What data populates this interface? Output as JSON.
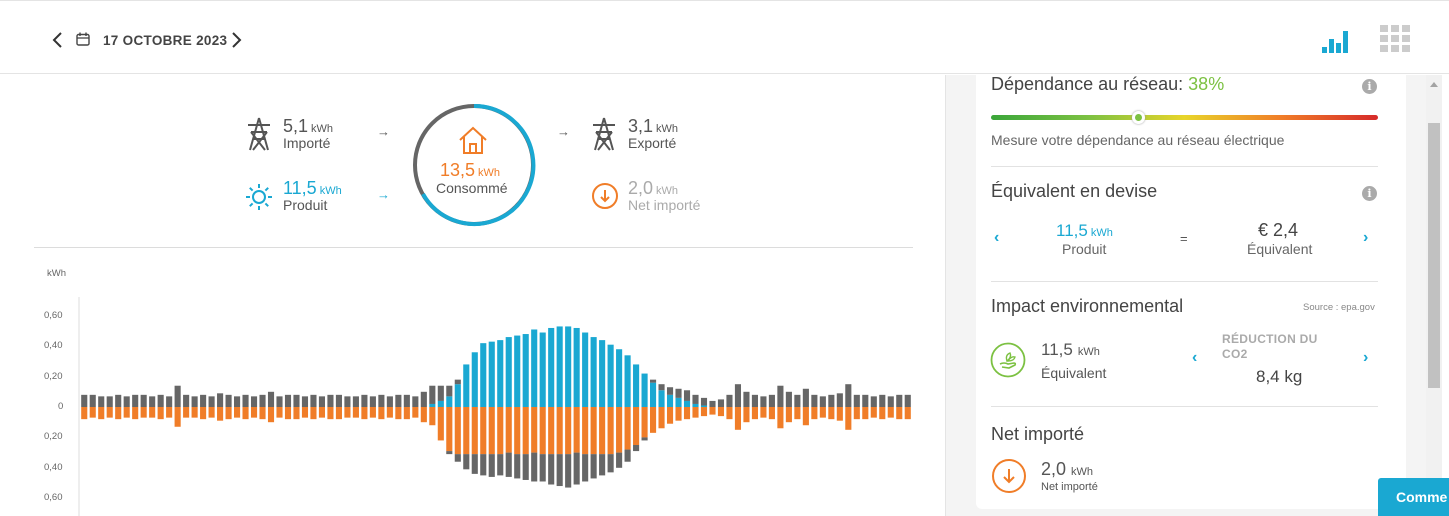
{
  "header": {
    "date": "17 OCTOBRE 2023",
    "prev_icon": "chevron-left-icon",
    "next_icon": "chevron-right-icon",
    "calendar_icon": "calendar-icon",
    "view_chart_icon": "bar-chart-icon",
    "view_grid_icon": "grid-icon"
  },
  "energy_flow": {
    "imported": {
      "value": "5,1",
      "unit": "kWh",
      "label": "Importé"
    },
    "produced": {
      "value": "11,5",
      "unit": "kWh",
      "label": "Produit"
    },
    "consumed": {
      "value": "13,5",
      "unit": "kWh",
      "label": "Consommé"
    },
    "exported": {
      "value": "3,1",
      "unit": "kWh",
      "label": "Exporté"
    },
    "net_imported": {
      "value": "2,0",
      "unit": "kWh",
      "label": "Net importé"
    },
    "arrow": "→"
  },
  "chart_data": {
    "type": "bar",
    "ylabel": "kWh",
    "yticks": [
      "0,60",
      "0,40",
      "0,20",
      "0",
      "0,20",
      "0,40",
      "0,60"
    ],
    "ylim": [
      -0.6,
      0.6
    ],
    "series": [
      {
        "color": "#1aa8d2",
        "values": [
          0,
          0,
          0,
          0,
          0,
          0,
          0,
          0,
          0,
          0,
          0,
          0,
          0,
          0,
          0,
          0,
          0,
          0,
          0,
          0,
          0,
          0,
          0,
          0,
          0,
          0,
          0,
          0,
          0,
          0,
          0,
          0,
          0,
          0,
          0,
          0,
          0,
          0,
          0,
          0,
          0,
          0.02,
          0.04,
          0.07,
          0.15,
          0.28,
          0.36,
          0.42,
          0.43,
          0.44,
          0.46,
          0.47,
          0.48,
          0.51,
          0.49,
          0.52,
          0.53,
          0.53,
          0.52,
          0.49,
          0.46,
          0.44,
          0.41,
          0.38,
          0.34,
          0.28,
          0.22,
          0.16,
          0.11,
          0.08,
          0.06,
          0.04,
          0.02,
          0.01,
          0,
          0,
          0,
          0,
          0,
          0,
          0,
          0,
          0,
          0,
          0,
          0,
          0,
          0,
          0,
          0,
          0,
          0,
          0,
          0,
          0,
          0,
          0,
          0
        ]
      },
      {
        "color": "#666666",
        "values": [
          0.08,
          0.08,
          0.07,
          0.07,
          0.08,
          0.07,
          0.08,
          0.08,
          0.07,
          0.08,
          0.07,
          0.14,
          0.08,
          0.07,
          0.08,
          0.07,
          0.09,
          0.08,
          0.07,
          0.08,
          0.07,
          0.08,
          0.1,
          0.07,
          0.08,
          0.08,
          0.07,
          0.08,
          0.07,
          0.08,
          0.08,
          0.07,
          0.07,
          0.08,
          0.07,
          0.08,
          0.07,
          0.08,
          0.08,
          0.07,
          0.1,
          0.12,
          0.1,
          0.07,
          0.03,
          0,
          0,
          0,
          0,
          0,
          0,
          0,
          0,
          0,
          0,
          0,
          0,
          0,
          0,
          0,
          0,
          0,
          0,
          0,
          0,
          0,
          0,
          0.02,
          0.04,
          0.05,
          0.06,
          0.07,
          0.06,
          0.05,
          0.04,
          0.05,
          0.08,
          0.15,
          0.1,
          0.08,
          0.07,
          0.08,
          0.14,
          0.1,
          0.08,
          0.12,
          0.08,
          0.07,
          0.08,
          0.09,
          0.15,
          0.08,
          0.08,
          0.07,
          0.08,
          0.07,
          0.08,
          0.08
        ]
      },
      {
        "color": "#f07d28",
        "values": [
          -0.08,
          -0.07,
          -0.08,
          -0.07,
          -0.08,
          -0.07,
          -0.08,
          -0.07,
          -0.07,
          -0.08,
          -0.07,
          -0.13,
          -0.07,
          -0.07,
          -0.08,
          -0.07,
          -0.09,
          -0.08,
          -0.07,
          -0.08,
          -0.07,
          -0.08,
          -0.1,
          -0.07,
          -0.08,
          -0.08,
          -0.07,
          -0.08,
          -0.07,
          -0.08,
          -0.08,
          -0.07,
          -0.07,
          -0.08,
          -0.07,
          -0.08,
          -0.07,
          -0.08,
          -0.08,
          -0.07,
          -0.1,
          -0.12,
          -0.22,
          -0.29,
          -0.31,
          -0.31,
          -0.31,
          -0.31,
          -0.31,
          -0.31,
          -0.3,
          -0.31,
          -0.31,
          -0.3,
          -0.31,
          -0.31,
          -0.31,
          -0.31,
          -0.3,
          -0.31,
          -0.31,
          -0.31,
          -0.31,
          -0.3,
          -0.28,
          -0.25,
          -0.2,
          -0.17,
          -0.14,
          -0.11,
          -0.09,
          -0.08,
          -0.07,
          -0.06,
          -0.05,
          -0.06,
          -0.08,
          -0.15,
          -0.1,
          -0.08,
          -0.07,
          -0.08,
          -0.14,
          -0.1,
          -0.08,
          -0.12,
          -0.08,
          -0.07,
          -0.08,
          -0.09,
          -0.15,
          -0.08,
          -0.08,
          -0.07,
          -0.08,
          -0.07,
          -0.08,
          -0.08
        ]
      },
      {
        "color": "#666666",
        "values": [
          0,
          0,
          0,
          0,
          0,
          0,
          0,
          0,
          0,
          0,
          0,
          0,
          0,
          0,
          0,
          0,
          0,
          0,
          0,
          0,
          0,
          0,
          0,
          0,
          0,
          0,
          0,
          0,
          0,
          0,
          0,
          0,
          0,
          0,
          0,
          0,
          0,
          0,
          0,
          0,
          0,
          0,
          0,
          -0.02,
          -0.05,
          -0.1,
          -0.13,
          -0.14,
          -0.15,
          -0.14,
          -0.16,
          -0.16,
          -0.17,
          -0.19,
          -0.18,
          -0.2,
          -0.21,
          -0.22,
          -0.21,
          -0.18,
          -0.16,
          -0.14,
          -0.12,
          -0.1,
          -0.08,
          -0.04,
          -0.02,
          0,
          0,
          0,
          0,
          0,
          0,
          0,
          0,
          0,
          0,
          0,
          0,
          0,
          0,
          0,
          0,
          0,
          0,
          0,
          0,
          0,
          0,
          0,
          0,
          0,
          0,
          0,
          0,
          0,
          0,
          0
        ]
      }
    ]
  },
  "right_panel": {
    "dependence": {
      "title": "Dépendance au réseau:",
      "value": "38%",
      "desc": "Mesure votre dépendance au réseau électrique",
      "level": 0.38
    },
    "currency": {
      "title": "Équivalent en devise",
      "produced_value": "11,5",
      "produced_unit": "kWh",
      "produced_label": "Produit",
      "equals": "=",
      "amount": "€ 2,4",
      "amount_label": "Équivalent"
    },
    "environment": {
      "title": "Impact environnemental",
      "source": "Source : epa.gov",
      "value": "11,5",
      "unit": "kWh",
      "label": "Équivalent",
      "reduction_label": "RÉDUCTION DU CO2",
      "reduction_value": "8,4 kg"
    },
    "net_imported": {
      "title": "Net importé",
      "value": "2,0",
      "unit": "kWh",
      "label": "Net importé"
    }
  },
  "cta": {
    "label": "Comme"
  },
  "colors": {
    "blue": "#1aa8d2",
    "orange": "#f07d28",
    "green": "#7cc142",
    "grey": "#666666"
  }
}
